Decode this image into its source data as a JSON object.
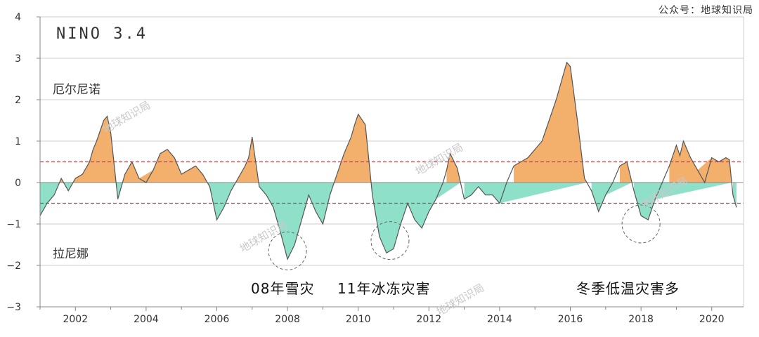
{
  "credit": "公众号：地球知识局",
  "panel_title": "NINO 3.4",
  "labels": {
    "el_nino": "厄尔尼诺",
    "la_nina": "拉尼娜"
  },
  "captions": {
    "snow_2008": "08年雪灾",
    "ice_2011": "11年冰冻灾害",
    "winter": "冬季低温灾害多"
  },
  "watermark": "地球知识局",
  "colors": {
    "positive_fill": "#f2b06c",
    "negative_fill": "#8fe0c9",
    "line": "#555555",
    "threshold": "#b8454a",
    "grid": "#cccccc"
  },
  "chart_data": {
    "type": "area",
    "title": "NINO 3.4",
    "xlabel": "",
    "ylabel": "",
    "xlim": [
      2001,
      2020.9
    ],
    "ylim": [
      -3,
      4
    ],
    "xticks": [
      2002,
      2004,
      2006,
      2008,
      2010,
      2012,
      2014,
      2016,
      2018,
      2020
    ],
    "yticks": [
      -3,
      -2,
      -1,
      0,
      1,
      2,
      3,
      4
    ],
    "grid": true,
    "thresholds": [
      0.5,
      -0.5
    ],
    "highlight_circles": [
      {
        "x": 2008.0,
        "y": -1.65
      },
      {
        "x": 2010.9,
        "y": -1.4
      },
      {
        "x": 2018.0,
        "y": -1.0
      }
    ],
    "x": [
      2001.0,
      2001.2,
      2001.4,
      2001.6,
      2001.8,
      2002.0,
      2002.2,
      2002.4,
      2002.5,
      2002.6,
      2002.8,
      2002.9,
      2003.0,
      2003.2,
      2003.4,
      2003.6,
      2003.8,
      2004.0,
      2004.2,
      2004.4,
      2004.6,
      2004.8,
      2005.0,
      2005.2,
      2005.4,
      2005.6,
      2005.8,
      2006.0,
      2006.2,
      2006.4,
      2006.6,
      2006.8,
      2006.9,
      2007.0,
      2007.2,
      2007.4,
      2007.6,
      2007.8,
      2008.0,
      2008.2,
      2008.4,
      2008.6,
      2008.8,
      2009.0,
      2009.2,
      2009.4,
      2009.6,
      2009.8,
      2009.9,
      2010.0,
      2010.2,
      2010.4,
      2010.6,
      2010.8,
      2011.0,
      2011.2,
      2011.4,
      2011.6,
      2011.8,
      2012.0,
      2012.2,
      2012.4,
      2012.5,
      2012.6,
      2012.8,
      2013.0,
      2013.2,
      2013.4,
      2013.6,
      2013.8,
      2014.0,
      2014.2,
      2014.4,
      2014.6,
      2014.8,
      2015.0,
      2015.2,
      2015.4,
      2015.6,
      2015.8,
      2015.9,
      2016.0,
      2016.2,
      2016.4,
      2016.6,
      2016.8,
      2017.0,
      2017.2,
      2017.4,
      2017.6,
      2017.8,
      2018.0,
      2018.2,
      2018.4,
      2018.6,
      2018.8,
      2019.0,
      2019.1,
      2019.2,
      2019.4,
      2019.6,
      2019.8,
      2020.0,
      2020.2,
      2020.4,
      2020.5,
      2020.6,
      2020.7
    ],
    "values": [
      -0.8,
      -0.5,
      -0.3,
      0.1,
      -0.2,
      0.1,
      0.2,
      0.5,
      0.8,
      1.0,
      1.5,
      1.6,
      1.2,
      -0.4,
      0.2,
      0.5,
      0.1,
      0.0,
      0.3,
      0.7,
      0.8,
      0.6,
      0.2,
      0.3,
      0.4,
      0.2,
      -0.1,
      -0.9,
      -0.6,
      -0.2,
      0.1,
      0.4,
      0.6,
      1.1,
      -0.1,
      -0.3,
      -0.6,
      -1.2,
      -1.85,
      -1.5,
      -0.9,
      -0.3,
      -0.7,
      -1.0,
      -0.3,
      0.2,
      0.7,
      1.1,
      1.4,
      1.65,
      1.4,
      -0.3,
      -1.3,
      -1.7,
      -1.6,
      -1.0,
      -0.5,
      -0.9,
      -1.1,
      -0.7,
      -0.4,
      0.0,
      0.3,
      0.7,
      0.35,
      -0.4,
      -0.3,
      -0.1,
      -0.3,
      -0.3,
      -0.5,
      0.0,
      0.4,
      0.5,
      0.6,
      0.8,
      1.0,
      1.5,
      2.0,
      2.6,
      2.9,
      2.8,
      1.5,
      0.1,
      -0.2,
      -0.7,
      -0.3,
      0.0,
      0.4,
      0.5,
      -0.2,
      -0.8,
      -0.9,
      -0.4,
      0.0,
      0.4,
      0.9,
      0.65,
      1.0,
      0.6,
      0.3,
      0.0,
      0.6,
      0.5,
      0.6,
      0.55,
      -0.3,
      -0.6
    ]
  }
}
